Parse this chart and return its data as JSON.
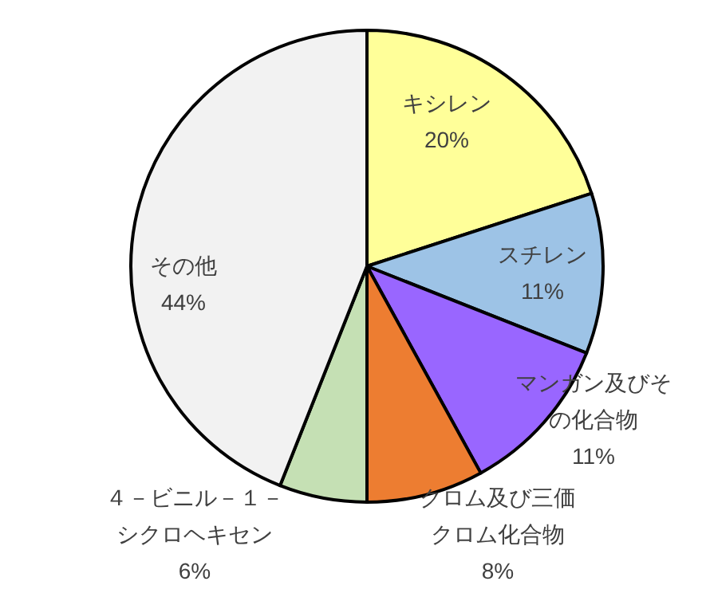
{
  "chart_data": {
    "type": "pie",
    "categories": [
      "キシレン",
      "スチレン",
      "マンガン及びその化合物",
      "クロム及び三価クロム化合物",
      "４－ビニル－１－シクロヘキセン",
      "その他"
    ],
    "values": [
      20,
      11,
      11,
      8,
      6,
      44
    ],
    "colors": [
      "#ffff99",
      "#9dc3e6",
      "#9966ff",
      "#ed7d31",
      "#c5e0b4",
      "#f2f2f2"
    ],
    "value_labels": [
      "20%",
      "11%",
      "11%",
      "8%",
      "6%",
      "44%"
    ]
  }
}
